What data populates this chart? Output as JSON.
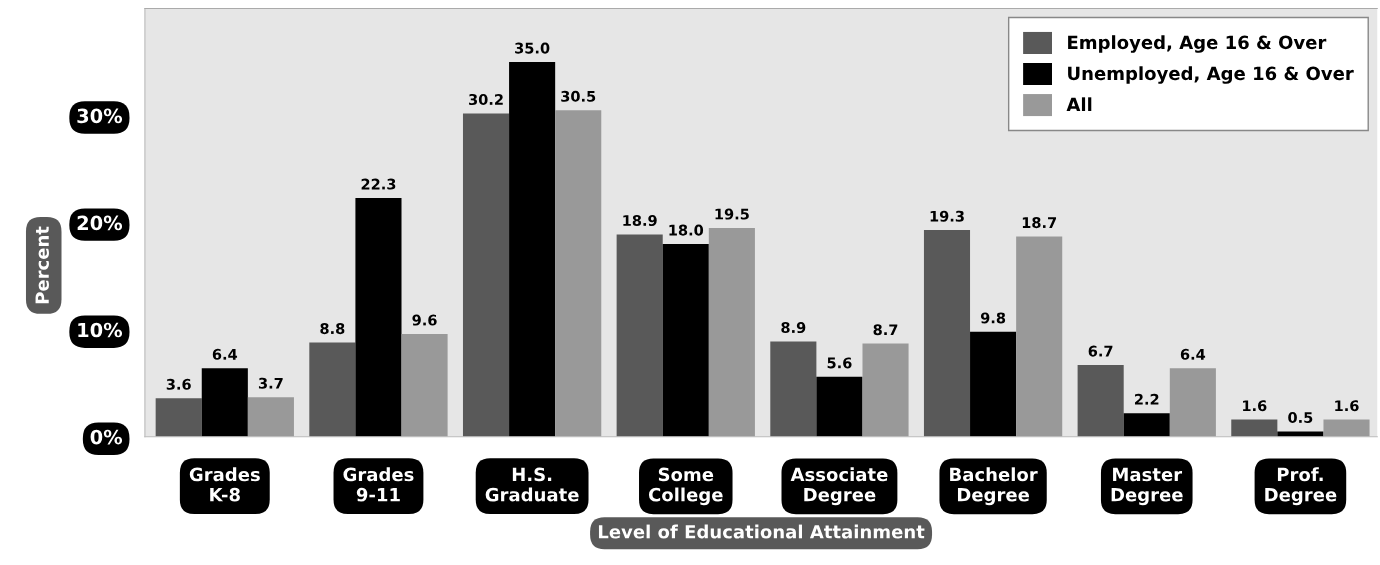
{
  "chart_data": {
    "type": "bar",
    "xlabel": "Level of Educational Attainment",
    "ylabel": "Percent",
    "categories": [
      "Grades\nK-8",
      "Grades\n9-11",
      "H.S.\nGraduate",
      "Some\nCollege",
      "Associate\nDegree",
      "Bachelor\nDegree",
      "Master\nDegree",
      "Prof.\nDegree"
    ],
    "series": [
      {
        "name": "Employed, Age 16 & Over",
        "color": "#595959",
        "values": [
          3.6,
          8.8,
          30.2,
          18.9,
          8.9,
          19.3,
          6.7,
          1.6
        ],
        "value_labels": [
          "3.6",
          "8.8",
          "30.2",
          "18.9",
          "8.9",
          "19.3",
          "6.7",
          "1.6"
        ]
      },
      {
        "name": "Unemployed, Age 16 & Over",
        "color": "#000000",
        "values": [
          6.4,
          22.3,
          35.0,
          18.0,
          5.6,
          9.8,
          2.2,
          0.5
        ],
        "value_labels": [
          "6.4",
          "22.3",
          "35.0",
          "18.0",
          "5.6",
          "9.8",
          "2.2",
          "0.5"
        ]
      },
      {
        "name": "All",
        "color": "#999999",
        "values": [
          3.7,
          9.6,
          30.5,
          19.5,
          8.7,
          18.7,
          6.4,
          1.6
        ],
        "value_labels": [
          "3.7",
          "9.6",
          "30.5",
          "19.5",
          "8.7",
          "18.7",
          "6.4",
          "1.6"
        ]
      }
    ],
    "ylim": [
      0,
      40
    ],
    "yticks": [
      {
        "value": 0,
        "label": "0%"
      },
      {
        "value": 10,
        "label": "10%"
      },
      {
        "value": 20,
        "label": "20%"
      },
      {
        "value": 30,
        "label": "30%"
      }
    ],
    "legend": "top right",
    "grid": false
  }
}
